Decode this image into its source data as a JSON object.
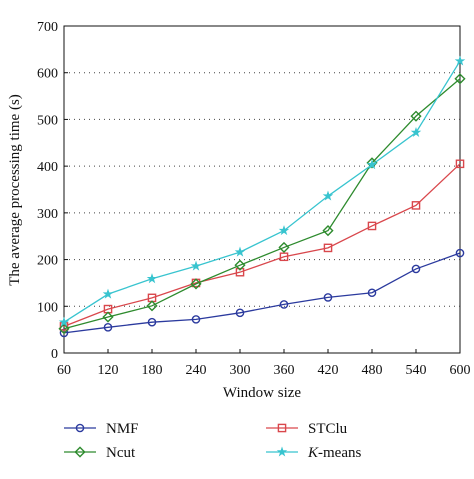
{
  "chart_data": {
    "type": "line",
    "title": "",
    "xlabel": "Window size",
    "ylabel": "The average processing time (s)",
    "x": [
      60,
      120,
      180,
      240,
      300,
      360,
      420,
      480,
      540,
      600
    ],
    "xlim": [
      60,
      600
    ],
    "ylim": [
      0,
      700
    ],
    "x_ticks": [
      "60",
      "120",
      "180",
      "240",
      "300",
      "360",
      "420",
      "480",
      "540",
      "600"
    ],
    "y_ticks": [
      "0",
      "100",
      "200",
      "300",
      "400",
      "500",
      "600",
      "700"
    ],
    "grid": "horizontal dotted",
    "legend_position": "bottom",
    "series": [
      {
        "name": "NMF",
        "label_prefix": "",
        "label_main": "NMF",
        "color": "#2b3a9e",
        "marker": "circle",
        "values": [
          43,
          55,
          66,
          72,
          86,
          104,
          119,
          129,
          180,
          214
        ]
      },
      {
        "name": "STClu",
        "label_prefix": "",
        "label_main": "STClu",
        "color": "#d9474c",
        "marker": "square",
        "values": [
          57,
          94,
          118,
          150,
          173,
          206,
          225,
          272,
          316,
          405
        ]
      },
      {
        "name": "Ncut",
        "label_prefix": "",
        "label_main": "Ncut",
        "color": "#2e8b2e",
        "marker": "diamond",
        "values": [
          52,
          77,
          101,
          148,
          188,
          226,
          262,
          407,
          507,
          587
        ]
      },
      {
        "name": "K-means",
        "label_prefix": "K",
        "label_main": "-means",
        "color": "#38c4cf",
        "marker": "star",
        "values": [
          66,
          126,
          159,
          186,
          216,
          262,
          336,
          403,
          472,
          625
        ]
      }
    ]
  }
}
